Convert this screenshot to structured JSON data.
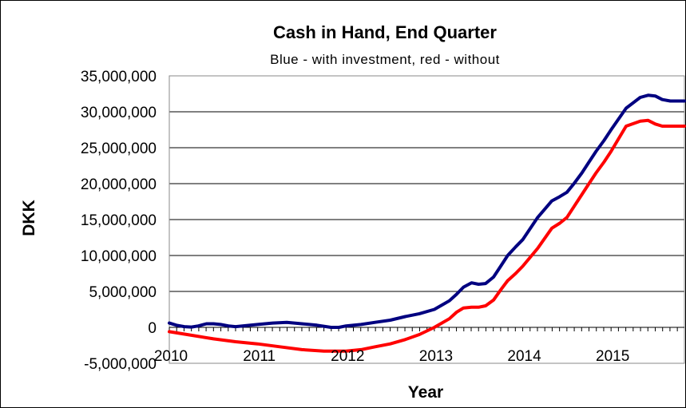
{
  "chart_data": {
    "type": "line",
    "title": "Cash in Hand, End Quarter",
    "subtitle": "Blue - with investment, red - without",
    "xlabel": "Year",
    "ylabel": "DKK",
    "xlim": [
      2010,
      2015.83
    ],
    "ylim": [
      -5000000,
      35000000
    ],
    "x_ticks": [
      {
        "value": 2010,
        "label": "2010"
      },
      {
        "value": 2011,
        "label": "2011"
      },
      {
        "value": 2012,
        "label": "2012"
      },
      {
        "value": 2013,
        "label": "2013"
      },
      {
        "value": 2014,
        "label": "2014"
      },
      {
        "value": 2015,
        "label": "2015"
      }
    ],
    "y_ticks": [
      {
        "value": 35000000,
        "label": "35,000,000"
      },
      {
        "value": 30000000,
        "label": "30,000,000"
      },
      {
        "value": 25000000,
        "label": "25,000,000"
      },
      {
        "value": 20000000,
        "label": "20,000,000"
      },
      {
        "value": 15000000,
        "label": "15,000,000"
      },
      {
        "value": 10000000,
        "label": "10,000,000"
      },
      {
        "value": 5000000,
        "label": "5,000,000"
      },
      {
        "value": 0,
        "label": "0"
      },
      {
        "value": -5000000,
        "label": "-5,000,000",
        "color": "#ff0000"
      }
    ],
    "grid": true,
    "series": [
      {
        "color": "#000080",
        "x": [
          2010.0,
          2010.08,
          2010.17,
          2010.25,
          2010.33,
          2010.42,
          2010.5,
          2010.58,
          2010.67,
          2010.75,
          2010.83,
          2010.92,
          2011.0,
          2011.17,
          2011.33,
          2011.5,
          2011.67,
          2011.83,
          2011.92,
          2012.0,
          2012.17,
          2012.33,
          2012.5,
          2012.67,
          2012.83,
          2013.0,
          2013.17,
          2013.25,
          2013.33,
          2013.42,
          2013.5,
          2013.58,
          2013.67,
          2013.75,
          2013.83,
          2013.92,
          2014.0,
          2014.17,
          2014.33,
          2014.42,
          2014.5,
          2014.58,
          2014.67,
          2014.75,
          2014.83,
          2014.92,
          2015.0,
          2015.17,
          2015.33,
          2015.42,
          2015.5,
          2015.58,
          2015.67,
          2015.75,
          2015.83
        ],
        "y": [
          600000,
          300000,
          100000,
          50000,
          200000,
          500000,
          500000,
          400000,
          200000,
          100000,
          200000,
          300000,
          400000,
          600000,
          700000,
          500000,
          300000,
          0,
          0,
          200000,
          400000,
          700000,
          1000000,
          1500000,
          1900000,
          2500000,
          3700000,
          4600000,
          5600000,
          6200000,
          6000000,
          6100000,
          7000000,
          8500000,
          10000000,
          11200000,
          12200000,
          15300000,
          17600000,
          18200000,
          18800000,
          20000000,
          21500000,
          23000000,
          24500000,
          26000000,
          27500000,
          30500000,
          32000000,
          32300000,
          32200000,
          31700000,
          31500000,
          31500000,
          31500000
        ]
      },
      {
        "color": "#ff0000",
        "x": [
          2010.0,
          2010.25,
          2010.5,
          2010.75,
          2011.0,
          2011.25,
          2011.5,
          2011.75,
          2012.0,
          2012.17,
          2012.33,
          2012.5,
          2012.67,
          2012.83,
          2013.0,
          2013.17,
          2013.25,
          2013.33,
          2013.42,
          2013.5,
          2013.58,
          2013.67,
          2013.75,
          2013.83,
          2013.92,
          2014.0,
          2014.17,
          2014.33,
          2014.42,
          2014.5,
          2014.58,
          2014.67,
          2014.75,
          2014.83,
          2014.92,
          2015.0,
          2015.17,
          2015.33,
          2015.42,
          2015.5,
          2015.58,
          2015.67,
          2015.75,
          2015.83
        ],
        "y": [
          -600000,
          -1100000,
          -1600000,
          -2000000,
          -2300000,
          -2700000,
          -3100000,
          -3300000,
          -3300000,
          -3100000,
          -2700000,
          -2300000,
          -1700000,
          -1000000,
          0,
          1200000,
          2100000,
          2700000,
          2800000,
          2800000,
          3000000,
          3800000,
          5200000,
          6500000,
          7500000,
          8500000,
          11000000,
          13800000,
          14500000,
          15300000,
          16800000,
          18500000,
          20000000,
          21500000,
          23000000,
          24500000,
          28000000,
          28700000,
          28800000,
          28300000,
          28000000,
          28000000,
          28000000,
          28000000
        ]
      }
    ]
  }
}
